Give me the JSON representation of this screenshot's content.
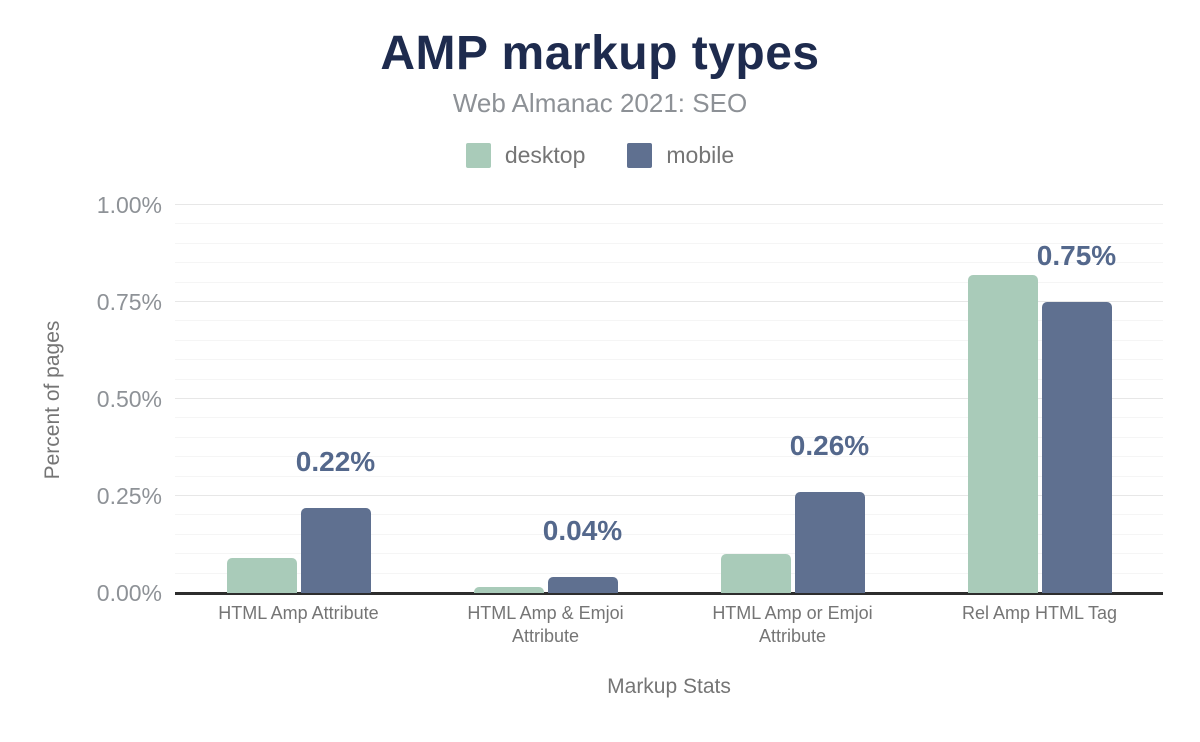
{
  "chart_data": {
    "type": "bar",
    "title": "AMP markup types",
    "subtitle": "Web Almanac 2021: SEO",
    "xlabel": "Markup Stats",
    "ylabel": "Percent of pages",
    "categories": [
      "HTML Amp Attribute",
      "HTML Amp & Emjoi Attribute",
      "HTML Amp or Emjoi Attribute",
      "Rel Amp HTML Tag"
    ],
    "series": [
      {
        "name": "desktop",
        "color": "#a9cbb9",
        "values": [
          0.09,
          0.015,
          0.1,
          0.82
        ],
        "labels": [
          "",
          "",
          "",
          ""
        ]
      },
      {
        "name": "mobile",
        "color": "#5f7090",
        "values": [
          0.22,
          0.04,
          0.26,
          0.75
        ],
        "labels": [
          "0.22%",
          "0.04%",
          "0.26%",
          "0.75%"
        ]
      }
    ],
    "ylim": [
      0,
      1.0
    ],
    "y_ticks": [
      {
        "value": 0.0,
        "label": "0.00%"
      },
      {
        "value": 0.25,
        "label": "0.25%"
      },
      {
        "value": 0.5,
        "label": "0.50%"
      },
      {
        "value": 0.75,
        "label": "0.75%"
      },
      {
        "value": 1.0,
        "label": "1.00%"
      }
    ],
    "minor_grid_step": 0.05,
    "grid": true,
    "legend_position": "top"
  },
  "appearance": {
    "title_color": "#1e2b4e",
    "subtitle_color": "#8d9196",
    "data_label_color": "#54688c",
    "axis_text_color": "#757575",
    "tick_label_color": "#8e9297",
    "desktop_color": "#a9cbb9",
    "mobile_color": "#5f7090"
  }
}
